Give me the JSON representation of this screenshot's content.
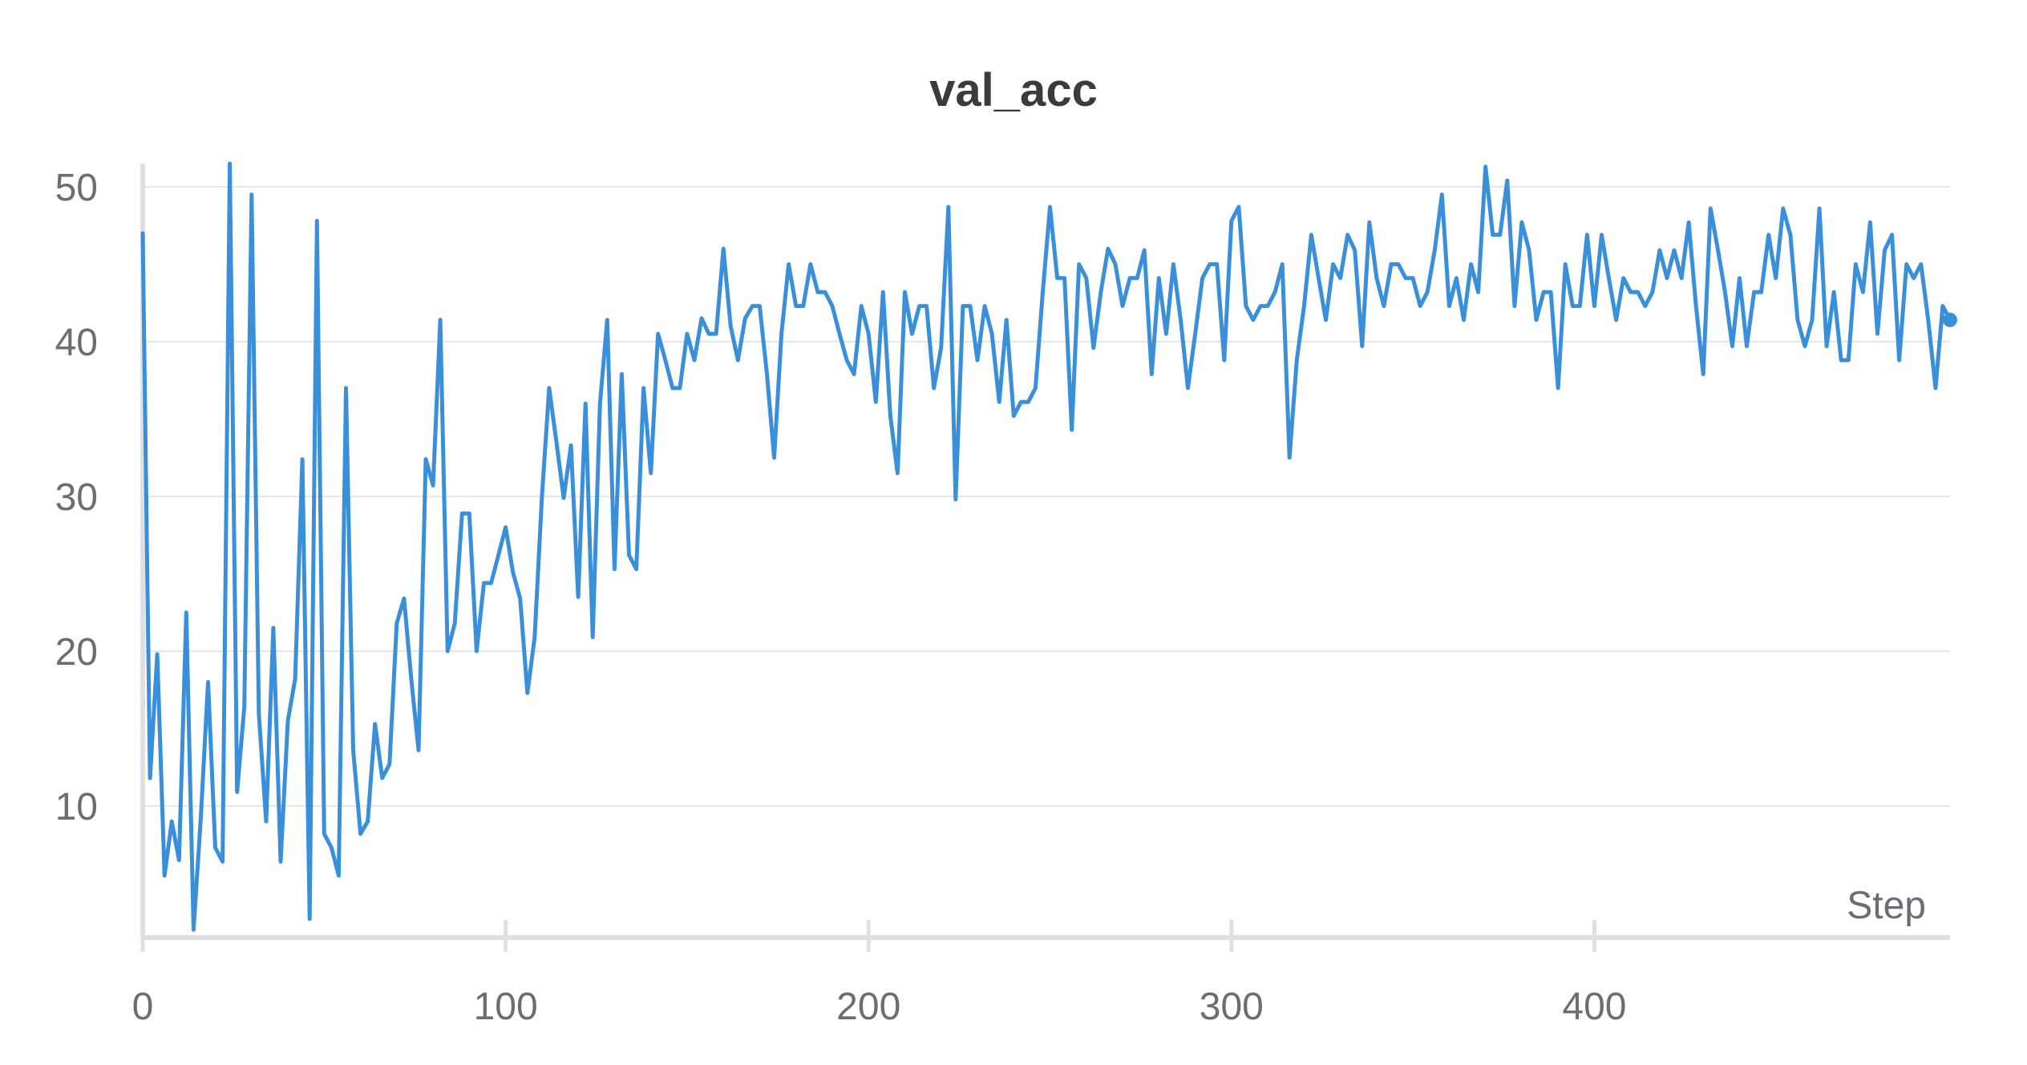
{
  "chart_data": {
    "type": "line",
    "title": "val_acc",
    "xlabel": "Step",
    "ylabel": "",
    "xlim": [
      0,
      498
    ],
    "ylim": [
      1.5,
      51.5
    ],
    "x_ticks": [
      0,
      100,
      200,
      300,
      400
    ],
    "y_ticks": [
      10,
      20,
      30,
      40,
      50
    ],
    "grid": true,
    "legend": "none",
    "series": [
      {
        "color": "#3a8fdb",
        "x": [
          0,
          2,
          4,
          6,
          8,
          10,
          12,
          14,
          16,
          18,
          20,
          22,
          24,
          26,
          28,
          30,
          32,
          34,
          36,
          38,
          40,
          42,
          44,
          46,
          48,
          50,
          52,
          54,
          56,
          58,
          60,
          62,
          64,
          66,
          68,
          70,
          72,
          74,
          76,
          78,
          80,
          82,
          84,
          86,
          88,
          90,
          92,
          94,
          96,
          98,
          100,
          102,
          104,
          106,
          108,
          110,
          112,
          114,
          116,
          118,
          120,
          122,
          124,
          126,
          128,
          130,
          132,
          134,
          136,
          138,
          140,
          142,
          144,
          146,
          148,
          150,
          152,
          154,
          156,
          158,
          160,
          162,
          164,
          166,
          168,
          170,
          172,
          174,
          176,
          178,
          180,
          182,
          184,
          186,
          188,
          190,
          192,
          194,
          196,
          198,
          200,
          202,
          204,
          206,
          208,
          210,
          212,
          214,
          216,
          218,
          220,
          222,
          224,
          226,
          228,
          230,
          232,
          234,
          236,
          238,
          240,
          242,
          244,
          246,
          248,
          250,
          252,
          254,
          256,
          258,
          260,
          262,
          264,
          266,
          268,
          270,
          272,
          274,
          276,
          278,
          280,
          282,
          284,
          286,
          288,
          290,
          292,
          294,
          296,
          298,
          300,
          302,
          304,
          306,
          308,
          310,
          312,
          314,
          316,
          318,
          320,
          322,
          324,
          326,
          328,
          330,
          332,
          334,
          336,
          338,
          340,
          342,
          344,
          346,
          348,
          350,
          352,
          354,
          356,
          358,
          360,
          362,
          364,
          366,
          368,
          370,
          372,
          374,
          376,
          378,
          380,
          382,
          384,
          386,
          388,
          390,
          392,
          394,
          396,
          398,
          400,
          402,
          404,
          406,
          408,
          410,
          412,
          414,
          416,
          418,
          420,
          422,
          424,
          426,
          428,
          430,
          432,
          434,
          436,
          438,
          440,
          442,
          444,
          446,
          448,
          450,
          452,
          454,
          456,
          458,
          460,
          462,
          464,
          466,
          468,
          470,
          472,
          474,
          476,
          478,
          480,
          482,
          484,
          486,
          488,
          490,
          492,
          494,
          496,
          498
        ],
        "values": [
          47.0,
          11.8,
          19.8,
          5.5,
          9.0,
          6.5,
          22.5,
          2.0,
          9.2,
          18.0,
          7.3,
          6.4,
          51.5,
          10.9,
          16.4,
          49.5,
          16.0,
          9.0,
          21.5,
          6.4,
          15.5,
          18.2,
          32.4,
          2.7,
          47.8,
          8.2,
          7.3,
          5.5,
          37.0,
          13.6,
          8.2,
          9.0,
          15.3,
          11.8,
          12.7,
          21.8,
          23.4,
          18.2,
          13.6,
          32.4,
          30.7,
          41.4,
          20.0,
          21.8,
          28.9,
          28.9,
          20.0,
          24.4,
          24.4,
          26.2,
          28.0,
          25.1,
          23.4,
          17.3,
          20.9,
          30.0,
          37.0,
          33.5,
          29.9,
          33.3,
          23.5,
          36.0,
          20.9,
          36.0,
          41.4,
          25.3,
          37.9,
          26.2,
          25.3,
          37.0,
          31.5,
          40.5,
          38.8,
          37.0,
          37.0,
          40.5,
          38.8,
          41.5,
          40.5,
          40.5,
          46.0,
          41.0,
          38.8,
          41.5,
          42.3,
          42.3,
          37.9,
          32.5,
          40.5,
          45.0,
          42.3,
          42.3,
          45.0,
          43.2,
          43.2,
          42.3,
          40.5,
          38.8,
          37.9,
          42.3,
          40.5,
          36.1,
          43.2,
          35.2,
          31.5,
          43.2,
          40.5,
          42.3,
          42.3,
          37.0,
          39.6,
          48.7,
          29.8,
          42.3,
          42.3,
          38.8,
          42.3,
          40.5,
          36.1,
          41.4,
          35.2,
          36.1,
          36.1,
          37.0,
          43.2,
          48.7,
          44.1,
          44.1,
          34.3,
          45.0,
          44.1,
          39.6,
          43.2,
          46.0,
          45.0,
          42.3,
          44.1,
          44.1,
          45.9,
          37.9,
          44.1,
          40.5,
          45.0,
          41.4,
          37.0,
          40.5,
          44.1,
          45.0,
          45.0,
          38.8,
          47.8,
          48.7,
          42.3,
          41.4,
          42.3,
          42.3,
          43.2,
          45.0,
          32.5,
          38.8,
          42.3,
          46.9,
          44.1,
          41.4,
          45.0,
          44.1,
          46.9,
          45.9,
          39.7,
          47.7,
          44.1,
          42.3,
          45.0,
          45.0,
          44.1,
          44.1,
          42.3,
          43.2,
          45.9,
          49.5,
          42.3,
          44.1,
          41.4,
          45.0,
          43.2,
          51.3,
          46.9,
          46.9,
          50.4,
          42.3,
          47.7,
          45.9,
          41.4,
          43.2,
          43.2,
          37.0,
          45.0,
          42.3,
          42.3,
          46.9,
          42.3,
          46.9,
          44.1,
          41.4,
          44.1,
          43.2,
          43.2,
          42.3,
          43.2,
          45.9,
          44.1,
          45.9,
          44.1,
          47.7,
          42.3,
          37.9,
          48.6,
          46.0,
          43.2,
          39.7,
          44.1,
          39.7,
          43.2,
          43.2,
          46.9,
          44.1,
          48.6,
          46.9,
          41.4,
          39.7,
          41.4,
          48.6,
          39.7,
          43.2,
          38.8,
          38.8,
          45.0,
          43.2,
          47.7,
          40.5,
          45.9,
          46.9,
          38.8,
          45.0,
          44.1,
          45.0,
          41.4,
          37.0,
          42.3,
          41.4
        ]
      }
    ]
  }
}
